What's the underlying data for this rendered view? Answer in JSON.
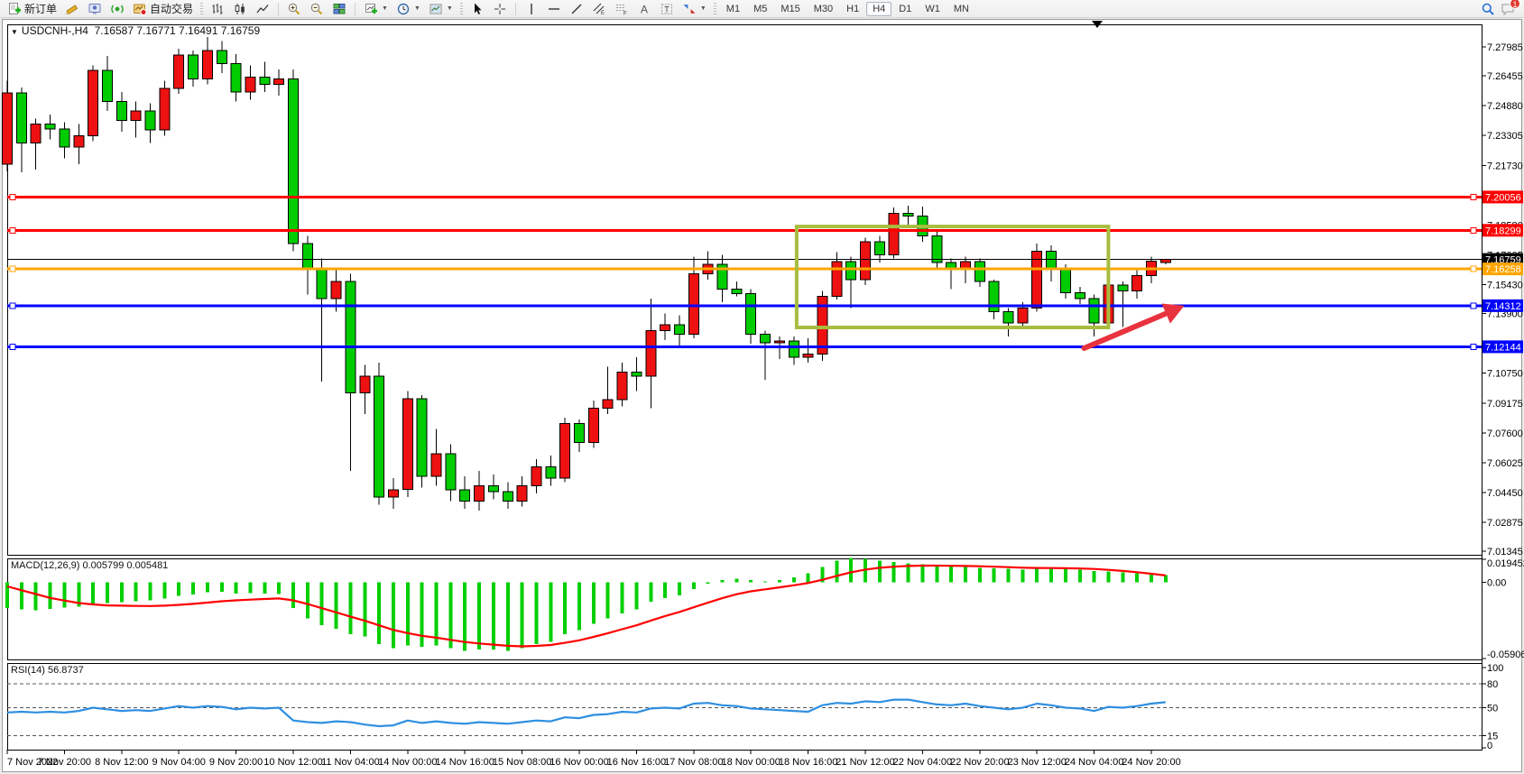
{
  "toolbar": {
    "new_order_label": "新订单",
    "auto_trading_label": "自动交易",
    "timeframes": [
      {
        "label": "M1",
        "active": false
      },
      {
        "label": "M5",
        "active": false
      },
      {
        "label": "M15",
        "active": false
      },
      {
        "label": "M30",
        "active": false
      },
      {
        "label": "H1",
        "active": false
      },
      {
        "label": "H4",
        "active": true
      },
      {
        "label": "D1",
        "active": false
      },
      {
        "label": "W1",
        "active": false
      },
      {
        "label": "MN",
        "active": false
      }
    ],
    "chat_badge": "1"
  },
  "header": {
    "symbol": "USDCNH-,H4",
    "ohlc": "7.16587 7.16771 7.16491 7.16759"
  },
  "panels": {
    "macd_label": "MACD(12,26,9)",
    "macd_values": "0.005799 0.005481",
    "rsi_label": "RSI(14)",
    "rsi_value": "56.8737"
  },
  "chart_data": {
    "type": "candlestick",
    "symbol": "USDCNH-",
    "timeframe": "H4",
    "colors": {
      "up_candle": "#ee1111",
      "down_candle": "#00cc00",
      "outline": "#000000",
      "macd_histogram": "#00cf00",
      "macd_signal": "#ff0000",
      "rsi_line": "#2f8fe0",
      "resistance_line": "#ff0000",
      "support_line": "#0000ff",
      "pivot_line": "#ffa500",
      "rectangle": "#a8bd3f",
      "arrow": "#e8333f"
    },
    "last_ohlc": {
      "open": 7.16587,
      "high": 7.16771,
      "low": 7.16491,
      "close": 7.16759
    },
    "candles": [
      [
        7.218,
        7.262,
        7.214,
        7.2555
      ],
      [
        7.2555,
        7.2585,
        7.2135,
        7.229
      ],
      [
        7.229,
        7.242,
        7.215,
        7.239
      ],
      [
        7.239,
        7.244,
        7.231,
        7.2365
      ],
      [
        7.2365,
        7.24,
        7.221,
        7.227
      ],
      [
        7.227,
        7.239,
        7.218,
        7.233
      ],
      [
        7.233,
        7.27,
        7.23,
        7.2675
      ],
      [
        7.2675,
        7.275,
        7.246,
        7.251
      ],
      [
        7.251,
        7.256,
        7.235,
        7.241
      ],
      [
        7.241,
        7.251,
        7.232,
        7.246
      ],
      [
        7.246,
        7.25,
        7.229,
        7.236
      ],
      [
        7.236,
        7.262,
        7.233,
        7.258
      ],
      [
        7.258,
        7.279,
        7.255,
        7.2755
      ],
      [
        7.2755,
        7.278,
        7.259,
        7.263
      ],
      [
        7.263,
        7.285,
        7.26,
        7.278
      ],
      [
        7.278,
        7.283,
        7.266,
        7.271
      ],
      [
        7.271,
        7.276,
        7.251,
        7.256
      ],
      [
        7.256,
        7.27,
        7.252,
        7.264
      ],
      [
        7.264,
        7.272,
        7.256,
        7.26
      ],
      [
        7.26,
        7.268,
        7.254,
        7.263
      ],
      [
        7.263,
        7.268,
        7.172,
        7.176
      ],
      [
        7.176,
        7.18,
        7.149,
        7.163
      ],
      [
        7.163,
        7.168,
        7.103,
        7.147
      ],
      [
        7.147,
        7.162,
        7.14,
        7.156
      ],
      [
        7.156,
        7.16,
        7.056,
        7.097
      ],
      [
        7.097,
        7.112,
        7.086,
        7.106
      ],
      [
        7.106,
        7.113,
        7.038,
        7.042
      ],
      [
        7.042,
        7.052,
        7.036,
        7.046
      ],
      [
        7.046,
        7.098,
        7.042,
        7.094
      ],
      [
        7.094,
        7.096,
        7.047,
        7.053
      ],
      [
        7.053,
        7.078,
        7.048,
        7.065
      ],
      [
        7.065,
        7.07,
        7.04,
        7.046
      ],
      [
        7.046,
        7.053,
        7.036,
        7.04
      ],
      [
        7.04,
        7.056,
        7.035,
        7.048
      ],
      [
        7.048,
        7.054,
        7.041,
        7.045
      ],
      [
        7.045,
        7.05,
        7.036,
        7.04
      ],
      [
        7.04,
        7.053,
        7.037,
        7.048
      ],
      [
        7.048,
        7.062,
        7.044,
        7.058
      ],
      [
        7.058,
        7.064,
        7.048,
        7.052
      ],
      [
        7.052,
        7.084,
        7.05,
        7.081
      ],
      [
        7.081,
        7.083,
        7.066,
        7.071
      ],
      [
        7.071,
        7.093,
        7.068,
        7.089
      ],
      [
        7.089,
        7.111,
        7.086,
        7.0935
      ],
      [
        7.0935,
        7.113,
        7.09,
        7.108
      ],
      [
        7.108,
        7.116,
        7.098,
        7.106
      ],
      [
        7.106,
        7.147,
        7.089,
        7.13
      ],
      [
        7.13,
        7.139,
        7.125,
        7.133
      ],
      [
        7.133,
        7.138,
        7.121,
        7.128
      ],
      [
        7.128,
        7.169,
        7.126,
        7.16
      ],
      [
        7.16,
        7.172,
        7.157,
        7.165
      ],
      [
        7.165,
        7.17,
        7.145,
        7.152
      ],
      [
        7.152,
        7.156,
        7.148,
        7.1495
      ],
      [
        7.1495,
        7.152,
        7.123,
        7.128
      ],
      [
        7.128,
        7.13,
        7.104,
        7.1235
      ],
      [
        7.1235,
        7.127,
        7.115,
        7.1245
      ],
      [
        7.1245,
        7.127,
        7.112,
        7.116
      ],
      [
        7.116,
        7.126,
        7.113,
        7.1175
      ],
      [
        7.1175,
        7.151,
        7.114,
        7.148
      ],
      [
        7.148,
        7.1715,
        7.1465,
        7.1665
      ],
      [
        7.1665,
        7.169,
        7.142,
        7.157
      ],
      [
        7.157,
        7.179,
        7.154,
        7.177
      ],
      [
        7.177,
        7.18,
        7.166,
        7.17
      ],
      [
        7.17,
        7.195,
        7.168,
        7.192
      ],
      [
        7.192,
        7.196,
        7.184,
        7.1905
      ],
      [
        7.1905,
        7.1955,
        7.177,
        7.18
      ],
      [
        7.18,
        7.183,
        7.163,
        7.166
      ],
      [
        7.166,
        7.168,
        7.152,
        7.1625
      ],
      [
        7.1625,
        7.169,
        7.155,
        7.1665
      ],
      [
        7.1665,
        7.168,
        7.153,
        7.156
      ],
      [
        7.156,
        7.157,
        7.136,
        7.14
      ],
      [
        7.14,
        7.142,
        7.127,
        7.134
      ],
      [
        7.134,
        7.145,
        7.131,
        7.142
      ],
      [
        7.142,
        7.176,
        7.14,
        7.172
      ],
      [
        7.172,
        7.175,
        7.156,
        7.163
      ],
      [
        7.163,
        7.165,
        7.147,
        7.15
      ],
      [
        7.15,
        7.153,
        7.144,
        7.147
      ],
      [
        7.147,
        7.149,
        7.127,
        7.134
      ],
      [
        7.134,
        7.156,
        7.131,
        7.154
      ],
      [
        7.154,
        7.156,
        7.132,
        7.151
      ],
      [
        7.151,
        7.162,
        7.147,
        7.159
      ],
      [
        7.159,
        7.169,
        7.155,
        7.1666
      ],
      [
        7.16587,
        7.16771,
        7.16491,
        7.16759
      ]
    ],
    "price_axis": {
      "ticks": [
        "7.27985",
        "7.26455",
        "7.24880",
        "7.23305",
        "7.21730",
        "7.18580",
        "7.17005",
        "7.15430",
        "7.13900",
        "7.10750",
        "7.09175",
        "7.07600",
        "7.06025",
        "7.04450",
        "7.02875",
        "7.01345"
      ],
      "badges": [
        {
          "value": "7.20056",
          "color": "#ff0000"
        },
        {
          "value": "7.18299",
          "color": "#ff0000"
        },
        {
          "value": "7.16759",
          "color": "#000000"
        },
        {
          "value": "7.16258",
          "color": "#ffa500"
        },
        {
          "value": "7.14312",
          "color": "#0000ff"
        },
        {
          "value": "7.12144",
          "color": "#0000ff"
        }
      ]
    },
    "time_axis": {
      "bars_per_label": 4,
      "labels": [
        "7 Nov 2022",
        "7 Nov 20:00",
        "8 Nov 12:00",
        "9 Nov 04:00",
        "9 Nov 20:00",
        "10 Nov 12:00",
        "11 Nov 04:00",
        "14 Nov 00:00",
        "14 Nov 16:00",
        "15 Nov 08:00",
        "16 Nov 00:00",
        "16 Nov 16:00",
        "17 Nov 08:00",
        "18 Nov 00:00",
        "18 Nov 16:00",
        "21 Nov 12:00",
        "22 Nov 04:00",
        "22 Nov 20:00",
        "23 Nov 12:00",
        "24 Nov 04:00",
        "24 Nov 20:00"
      ]
    },
    "hlines": [
      {
        "price": 7.20056,
        "color": "#ff0000",
        "width": 3
      },
      {
        "price": 7.18299,
        "color": "#ff0000",
        "width": 3
      },
      {
        "price": 7.16258,
        "color": "#ffa500",
        "width": 3
      },
      {
        "price": 7.14312,
        "color": "#0000ff",
        "width": 3
      },
      {
        "price": 7.12144,
        "color": "#0000ff",
        "width": 3
      }
    ],
    "current_price_line": {
      "price": 7.16759,
      "color": "#000000"
    },
    "rectangle": {
      "bar_from": 55.2,
      "bar_to": 77.0,
      "price_top": 7.185,
      "price_bottom": 7.1317
    },
    "arrow": {
      "from_bar": 75.3,
      "from_price": 7.1207,
      "to_bar": 82.3,
      "to_price": 7.14312
    },
    "macd": {
      "label": "MACD(12,26,9)",
      "main_value": 0.005799,
      "signal_value": 0.005481,
      "axis": [
        {
          "v": 0.019452,
          "label": "0.019452"
        },
        {
          "v": 0,
          "label": "0.00"
        },
        {
          "v": -0.059068,
          "label": "-0.059068"
        }
      ],
      "histogram": [
        -0.02,
        -0.021,
        -0.0215,
        -0.0205,
        -0.0195,
        -0.0188,
        -0.0175,
        -0.016,
        -0.0152,
        -0.0146,
        -0.014,
        -0.0126,
        -0.0104,
        -0.0092,
        -0.0076,
        -0.0072,
        -0.0086,
        -0.0082,
        -0.0085,
        -0.0088,
        -0.02,
        -0.028,
        -0.033,
        -0.036,
        -0.04,
        -0.042,
        -0.048,
        -0.051,
        -0.049,
        -0.05,
        -0.049,
        -0.051,
        -0.053,
        -0.052,
        -0.052,
        -0.053,
        -0.051,
        -0.048,
        -0.046,
        -0.04,
        -0.037,
        -0.032,
        -0.028,
        -0.024,
        -0.021,
        -0.015,
        -0.012,
        -0.01,
        -0.005,
        -0.001,
        0.002,
        0.003,
        0.002,
        0.001,
        0.002,
        0.004,
        0.007,
        0.012,
        0.017,
        0.019,
        0.0185,
        0.017,
        0.016,
        0.015,
        0.014,
        0.013,
        0.0125,
        0.012,
        0.0115,
        0.011,
        0.0105,
        0.01,
        0.0105,
        0.011,
        0.0105,
        0.01,
        0.009,
        0.0085,
        0.008,
        0.007,
        0.0065,
        0.005799
      ],
      "signal": [
        -0.003,
        -0.006,
        -0.009,
        -0.012,
        -0.014,
        -0.016,
        -0.017,
        -0.0178,
        -0.018,
        -0.0182,
        -0.0183,
        -0.018,
        -0.0174,
        -0.0166,
        -0.0156,
        -0.0146,
        -0.0139,
        -0.0133,
        -0.0128,
        -0.0124,
        -0.0139,
        -0.0167,
        -0.02,
        -0.0232,
        -0.0266,
        -0.0297,
        -0.0333,
        -0.0369,
        -0.0393,
        -0.0414,
        -0.0429,
        -0.0446,
        -0.0463,
        -0.0474,
        -0.0483,
        -0.0492,
        -0.0496,
        -0.0493,
        -0.0486,
        -0.0469,
        -0.0449,
        -0.0423,
        -0.0394,
        -0.0363,
        -0.0333,
        -0.0296,
        -0.0261,
        -0.0229,
        -0.0193,
        -0.0157,
        -0.0122,
        -0.0091,
        -0.0069,
        -0.0053,
        -0.0038,
        -0.0022,
        -0.0004,
        0.0021,
        0.0051,
        0.0079,
        0.01,
        0.0114,
        0.0123,
        0.0128,
        0.0131,
        0.0131,
        0.013,
        0.0128,
        0.0126,
        0.0123,
        0.0119,
        0.0115,
        0.0113,
        0.0112,
        0.0111,
        0.0109,
        0.0105,
        0.0098,
        0.009,
        0.008,
        0.0068,
        0.005481
      ]
    },
    "rsi": {
      "label": "RSI(14)",
      "value": 56.8737,
      "axis": [
        100,
        80,
        50,
        15,
        0
      ],
      "levels": [
        80,
        50,
        15
      ],
      "series": [
        44,
        45,
        44,
        45,
        44,
        46,
        50,
        48,
        46,
        47,
        46,
        49,
        52,
        50,
        52,
        51,
        48,
        50,
        49,
        50,
        34,
        32,
        31,
        33,
        32,
        29,
        27,
        28,
        34,
        31,
        33,
        31,
        30,
        32,
        31,
        30,
        32,
        34,
        33,
        38,
        37,
        41,
        42,
        45,
        44,
        49,
        50,
        49,
        55,
        56,
        53,
        52,
        49,
        48,
        47,
        46,
        45,
        53,
        56,
        55,
        58,
        57,
        60,
        60,
        57,
        54,
        53,
        55,
        52,
        50,
        48,
        50,
        55,
        53,
        50,
        49,
        46,
        51,
        50,
        52,
        55,
        56.87
      ]
    }
  }
}
